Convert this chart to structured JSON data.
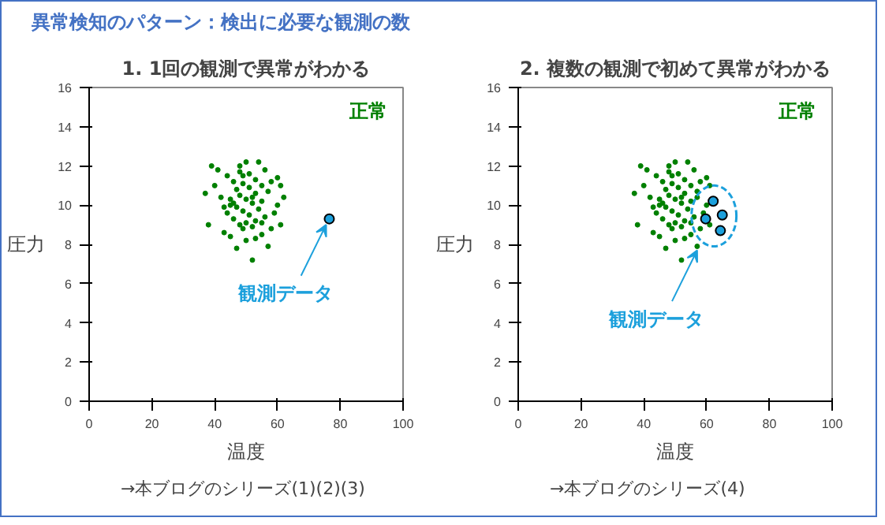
{
  "chart_data": [
    {
      "type": "scatter",
      "title": "1. 1回の観測で異常がわかる",
      "xlabel": "温度",
      "ylabel": "圧力",
      "xlim": [
        0,
        100
      ],
      "ylim": [
        0,
        16
      ],
      "xticks": [
        0,
        20,
        40,
        60,
        80,
        100
      ],
      "yticks": [
        0,
        2,
        4,
        6,
        8,
        10,
        12,
        14,
        16
      ],
      "grid": false,
      "marker": "circle",
      "series": [
        {
          "color": "#008000",
          "x": [
            37,
            38,
            39,
            40,
            41,
            42,
            43,
            44,
            44,
            45,
            45,
            46,
            46,
            47,
            47,
            47,
            48,
            48,
            48,
            49,
            49,
            49,
            50,
            50,
            50,
            51,
            51,
            51,
            52,
            52,
            52,
            53,
            53,
            53,
            54,
            54,
            55,
            55,
            55,
            56,
            56,
            57,
            57,
            58,
            58,
            59,
            60,
            60,
            61,
            61,
            62,
            45,
            43,
            48,
            50,
            53,
            46,
            52,
            55,
            49
          ],
          "values": [
            10.6,
            9.0,
            12.0,
            11.0,
            11.8,
            10.4,
            8.6,
            9.6,
            11.5,
            10.0,
            8.4,
            11.2,
            9.3,
            10.8,
            7.8,
            9.9,
            12.0,
            9.0,
            10.5,
            11.5,
            8.8,
            9.7,
            10.3,
            12.2,
            8.2,
            9.5,
            10.9,
            11.6,
            7.2,
            10.1,
            8.9,
            11.3,
            9.2,
            10.6,
            12.2,
            9.8,
            11.0,
            8.5,
            10.2,
            11.8,
            9.4,
            7.9,
            10.7,
            11.2,
            8.8,
            9.6,
            11.4,
            10.0,
            9.0,
            11.0,
            10.4,
            10.3,
            9.9,
            11.7,
            9.1,
            8.3,
            10.1,
            10.4,
            9.1,
            11.1
          ]
        },
        {
          "color": "#1ca0dc",
          "x": [
            76.5
          ],
          "values": [
            9.3
          ]
        }
      ],
      "annotations": [
        "異常検知のパターン：検出に必要な観測の数",
        "正常",
        {
          "text": "観測データ",
          "x": 76.5,
          "y": 9.3
        },
        "→本ブログのシリーズ(1)(2)(3)"
      ]
    },
    {
      "type": "scatter",
      "title": "2. 複数の観測で初めて異常がわかる",
      "xlabel": "温度",
      "ylabel": "圧力",
      "xlim": [
        0,
        100
      ],
      "ylim": [
        0,
        16
      ],
      "xticks": [
        0,
        20,
        40,
        60,
        80,
        100
      ],
      "yticks": [
        0,
        2,
        4,
        6,
        8,
        10,
        12,
        14,
        16
      ],
      "grid": false,
      "marker": "circle",
      "series": [
        {
          "color": "#008000",
          "x": [
            37,
            38,
            39,
            40,
            41,
            42,
            43,
            44,
            44,
            45,
            45,
            46,
            46,
            47,
            47,
            47,
            48,
            48,
            48,
            49,
            49,
            49,
            50,
            50,
            50,
            51,
            51,
            51,
            52,
            52,
            52,
            53,
            53,
            53,
            54,
            54,
            55,
            55,
            55,
            56,
            56,
            57,
            57,
            58,
            58,
            59,
            60,
            60,
            61,
            61,
            57,
            45,
            43,
            48,
            50,
            53,
            46,
            52,
            55,
            49
          ],
          "values": [
            10.6,
            9.0,
            12.0,
            11.0,
            11.8,
            10.4,
            8.6,
            9.6,
            11.5,
            10.0,
            8.4,
            11.2,
            9.3,
            10.8,
            7.8,
            9.9,
            12.0,
            9.0,
            10.5,
            11.5,
            8.8,
            9.7,
            10.3,
            12.2,
            8.2,
            9.5,
            10.9,
            11.6,
            7.2,
            10.1,
            8.9,
            11.3,
            9.2,
            10.6,
            12.2,
            9.8,
            11.0,
            8.5,
            10.2,
            11.8,
            9.4,
            7.9,
            10.7,
            11.2,
            8.8,
            9.6,
            11.4,
            10.0,
            9.0,
            11.0,
            10.4,
            10.3,
            9.9,
            11.7,
            9.1,
            8.3,
            10.1,
            10.4,
            9.1,
            11.1
          ]
        },
        {
          "color": "#1ca0dc",
          "x": [
            62.1,
            59.7,
            65.0,
            64.4
          ],
          "values": [
            10.2,
            9.3,
            9.5,
            8.7
          ]
        }
      ],
      "annotations": [
        "正常",
        {
          "text": "観測データ",
          "x": 58,
          "y": 8.0
        },
        "→本ブログのシリーズ(4)"
      ]
    }
  ]
}
